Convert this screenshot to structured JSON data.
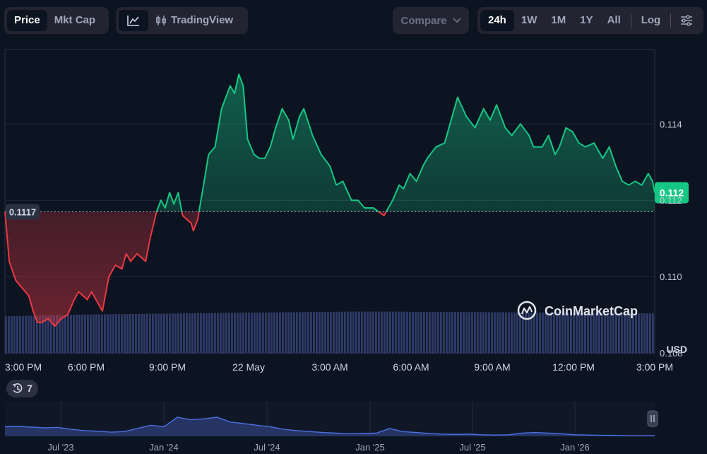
{
  "toolbar": {
    "view_tabs": [
      "Price",
      "Mkt Cap"
    ],
    "tradingview_label": "TradingView",
    "compare_label": "Compare",
    "ranges": [
      "24h",
      "1W",
      "1M",
      "1Y",
      "All"
    ],
    "log_label": "Log",
    "active_view": "Price",
    "active_range": "24h"
  },
  "watermark": "CoinMarketCap",
  "history_badge": "7",
  "colors": {
    "up": "#16c784",
    "down": "#ea3943",
    "volume": "#2f3a66",
    "background": "#0d1421"
  },
  "chart_data": {
    "type": "area",
    "currency_label": "USD",
    "open_price": 0.1117,
    "open_price_label": "0.1117",
    "current_price": 0.1122,
    "current_price_label": "0.112",
    "y_ticks": [
      0.108,
      0.11,
      0.112,
      0.114
    ],
    "y_tick_labels": [
      "0.108",
      "0.110",
      "0.112",
      "0.114"
    ],
    "ylim": [
      0.107985,
      0.11595
    ],
    "x_hours": [
      0,
      24
    ],
    "x_ticks": [
      {
        "hour": 0,
        "label": "3:00 PM"
      },
      {
        "hour": 3,
        "label": "6:00 PM"
      },
      {
        "hour": 6,
        "label": "9:00 PM"
      },
      {
        "hour": 9,
        "label": "22 May"
      },
      {
        "hour": 12,
        "label": "3:00 AM"
      },
      {
        "hour": 15,
        "label": "6:00 AM"
      },
      {
        "hour": 18,
        "label": "9:00 AM"
      },
      {
        "hour": 21,
        "label": "12:00 PM"
      },
      {
        "hour": 24,
        "label": "3:00 PM"
      }
    ],
    "series": [
      {
        "x": [
          0.0,
          0.16,
          0.4,
          0.88,
          1.04,
          1.2,
          1.36,
          1.6,
          1.84,
          2.08,
          2.32,
          2.56,
          2.72,
          3.04,
          3.2,
          3.44,
          3.6,
          3.84,
          4.08,
          4.32,
          4.48,
          4.64,
          4.88,
          5.2,
          5.36,
          5.6,
          5.76,
          5.92,
          6.08,
          6.24,
          6.4,
          6.56,
          6.88,
          6.96,
          7.12,
          7.36,
          7.52,
          7.76,
          8.0,
          8.32,
          8.48,
          8.64,
          8.8,
          8.96,
          9.2,
          9.4,
          9.6,
          9.8,
          10.0,
          10.24,
          10.48,
          10.64,
          10.88,
          11.04,
          11.36,
          11.68,
          12.0,
          12.24,
          12.48,
          12.8,
          13.04,
          13.28,
          13.6,
          14.0,
          14.32,
          14.56,
          14.72,
          14.96,
          15.2,
          15.44,
          15.6,
          15.92,
          16.24,
          16.48,
          16.72,
          17.04,
          17.36,
          17.68,
          17.92,
          18.16,
          18.48,
          18.72,
          19.04,
          19.36,
          19.52,
          19.84,
          20.08,
          20.32,
          20.48,
          20.72,
          20.96,
          21.2,
          21.44,
          21.76,
          22.08,
          22.32,
          22.56,
          22.8,
          23.04,
          23.28,
          23.52,
          23.76,
          23.92,
          24.0
        ],
        "y": [
          0.1117,
          0.1104,
          0.1099,
          0.1095,
          0.1091,
          0.1088,
          0.1088,
          0.1089,
          0.1087,
          0.1089,
          0.109,
          0.1094,
          0.1096,
          0.1094,
          0.1096,
          0.1093,
          0.1091,
          0.11,
          0.1103,
          0.1102,
          0.1106,
          0.1104,
          0.1106,
          0.1104,
          0.111,
          0.1117,
          0.112,
          0.1118,
          0.1122,
          0.1119,
          0.1122,
          0.1116,
          0.1114,
          0.1112,
          0.1115,
          0.1125,
          0.1132,
          0.1134,
          0.1144,
          0.115,
          0.1148,
          0.1153,
          0.115,
          0.1136,
          0.1132,
          0.1131,
          0.1131,
          0.1134,
          0.1139,
          0.1144,
          0.1141,
          0.1136,
          0.1142,
          0.1144,
          0.1137,
          0.1132,
          0.1129,
          0.1124,
          0.1125,
          0.112,
          0.112,
          0.1118,
          0.1118,
          0.1116,
          0.112,
          0.1124,
          0.1123,
          0.1127,
          0.1125,
          0.1129,
          0.1131,
          0.1134,
          0.1135,
          0.1141,
          0.1147,
          0.1142,
          0.1139,
          0.1144,
          0.1141,
          0.1145,
          0.1139,
          0.1137,
          0.114,
          0.1137,
          0.1134,
          0.1134,
          0.1137,
          0.1132,
          0.1134,
          0.1139,
          0.1138,
          0.1135,
          0.1134,
          0.1135,
          0.1131,
          0.1134,
          0.1129,
          0.1125,
          0.1124,
          0.1125,
          0.1124,
          0.1127,
          0.1125,
          0.1122
        ]
      }
    ],
    "volume_levels": [
      0.8,
      0.82,
      0.84,
      0.85,
      0.86,
      0.87,
      0.88,
      0.89,
      0.9,
      0.9,
      0.89,
      0.89,
      0.88,
      0.88,
      0.87,
      0.86
    ],
    "navigator": {
      "x_labels": [
        "Jul '23",
        "Jan '24",
        "Jul '24",
        "Jan '25",
        "Jul '25",
        "Jan '26"
      ],
      "values": [
        0.3,
        0.31,
        0.29,
        0.27,
        0.28,
        0.22,
        0.18,
        0.16,
        0.13,
        0.15,
        0.25,
        0.35,
        0.3,
        0.6,
        0.52,
        0.55,
        0.6,
        0.45,
        0.4,
        0.35,
        0.3,
        0.22,
        0.18,
        0.15,
        0.12,
        0.1,
        0.08,
        0.09,
        0.1,
        0.25,
        0.15,
        0.12,
        0.09,
        0.07,
        0.06,
        0.07,
        0.05,
        0.04,
        0.05,
        0.1,
        0.12,
        0.1,
        0.08,
        0.05,
        0.04,
        0.03,
        0.03,
        0.02,
        0.02,
        0.02
      ]
    }
  }
}
